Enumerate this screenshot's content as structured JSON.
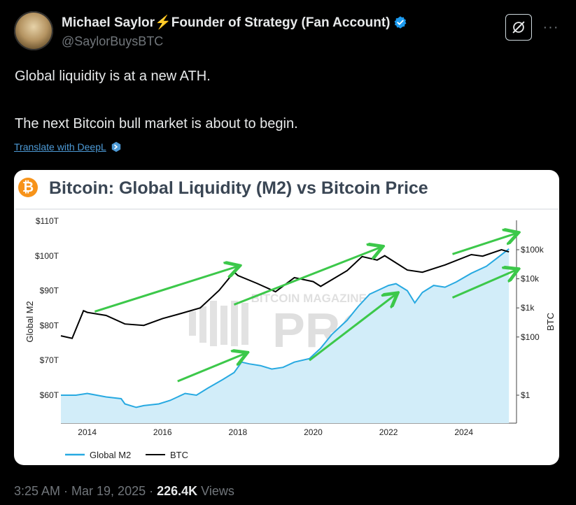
{
  "tweet": {
    "author_name": "Michael Saylor⚡Founder of Strategy (Fan Account)",
    "handle": "@SaylorBuysBTC",
    "line1": "Global liquidity is at a new ATH.",
    "line2": "The next Bitcoin bull market is about to begin.",
    "translate_label": "Translate with DeepL",
    "time": "3:25 AM · Mar 19, 2025 · ",
    "views_count": "226.4K",
    "views_label": " Views",
    "more_label": "···"
  },
  "chart_data": {
    "type": "area",
    "title": "Bitcoin: Global Liquidity (M2) vs Bitcoin Price",
    "watermark": "BITCOIN MAGAZINE PRO",
    "x_ticks": [
      "2014",
      "2016",
      "2018",
      "2020",
      "2022",
      "2024"
    ],
    "y_left_label": "Global M2",
    "y_left_ticks": [
      "$60T",
      "$70T",
      "$80T",
      "$90T",
      "$100T",
      "$110T"
    ],
    "y_left_range": [
      56,
      114
    ],
    "y_right_label": "BTC",
    "y_right_ticks": [
      "$1",
      "$100",
      "$1k",
      "$10k",
      "$100k"
    ],
    "y_right_scale": "log",
    "legend": [
      "Global M2",
      "BTC"
    ],
    "colors": {
      "m2": "#27a9e1",
      "m2_fill": "#d2edf9",
      "btc": "#000000",
      "arrows": "#3cc84a"
    },
    "series": [
      {
        "name": "Global M2",
        "x": [
          2013.3,
          2013.7,
          2014.0,
          2014.5,
          2014.9,
          2015.0,
          2015.3,
          2015.5,
          2015.9,
          2016.2,
          2016.6,
          2016.9,
          2017.2,
          2017.6,
          2017.9,
          2018.1,
          2018.3,
          2018.6,
          2018.9,
          2019.2,
          2019.5,
          2019.9,
          2020.2,
          2020.5,
          2020.9,
          2021.2,
          2021.5,
          2021.8,
          2022.0,
          2022.2,
          2022.5,
          2022.7,
          2022.9,
          2023.2,
          2023.5,
          2023.8,
          2024.2,
          2024.6,
          2024.9,
          2025.2
        ],
        "y": [
          60.0,
          60.0,
          60.5,
          59.5,
          59.0,
          57.5,
          56.5,
          57.0,
          57.5,
          58.5,
          60.5,
          60.0,
          62.0,
          64.5,
          66.5,
          69.5,
          69.0,
          68.5,
          67.5,
          68.0,
          69.5,
          70.5,
          73.5,
          77.5,
          81.5,
          85.5,
          89.0,
          90.5,
          91.5,
          92.0,
          90.0,
          86.5,
          89.5,
          91.5,
          91.0,
          92.5,
          95.0,
          97.0,
          99.5,
          102.0
        ]
      },
      {
        "name": "BTC",
        "x": [
          2013.3,
          2013.6,
          2013.9,
          2014.0,
          2014.5,
          2015.0,
          2015.5,
          2016.0,
          2016.5,
          2017.0,
          2017.5,
          2017.9,
          2018.0,
          2018.5,
          2019.0,
          2019.5,
          2020.0,
          2020.2,
          2020.9,
          2021.3,
          2021.7,
          2021.9,
          2022.5,
          2022.9,
          2023.5,
          2024.2,
          2024.5,
          2025.0,
          2025.2
        ],
        "y": [
          110,
          90,
          800,
          700,
          550,
          280,
          250,
          430,
          650,
          1000,
          4000,
          17000,
          13000,
          7000,
          3600,
          11000,
          8000,
          5500,
          19000,
          58000,
          44000,
          62000,
          20000,
          16800,
          30000,
          68000,
          60000,
          100000,
          84000
        ]
      }
    ],
    "arrows": [
      {
        "from": [
          2014.2,
          84.0
        ],
        "to": [
          2018.0,
          97.0
        ]
      },
      {
        "from": [
          2017.9,
          86.0
        ],
        "to": [
          2021.8,
          102.5
        ]
      },
      {
        "from": [
          2023.7,
          100.5
        ],
        "to": [
          2025.4,
          106.5
        ]
      },
      {
        "from": [
          2016.4,
          64.0
        ],
        "to": [
          2018.2,
          72.0
        ]
      },
      {
        "from": [
          2019.9,
          70.0
        ],
        "to": [
          2022.2,
          89.0
        ]
      },
      {
        "from": [
          2023.7,
          88.0
        ],
        "to": [
          2025.4,
          96.0
        ]
      }
    ]
  }
}
